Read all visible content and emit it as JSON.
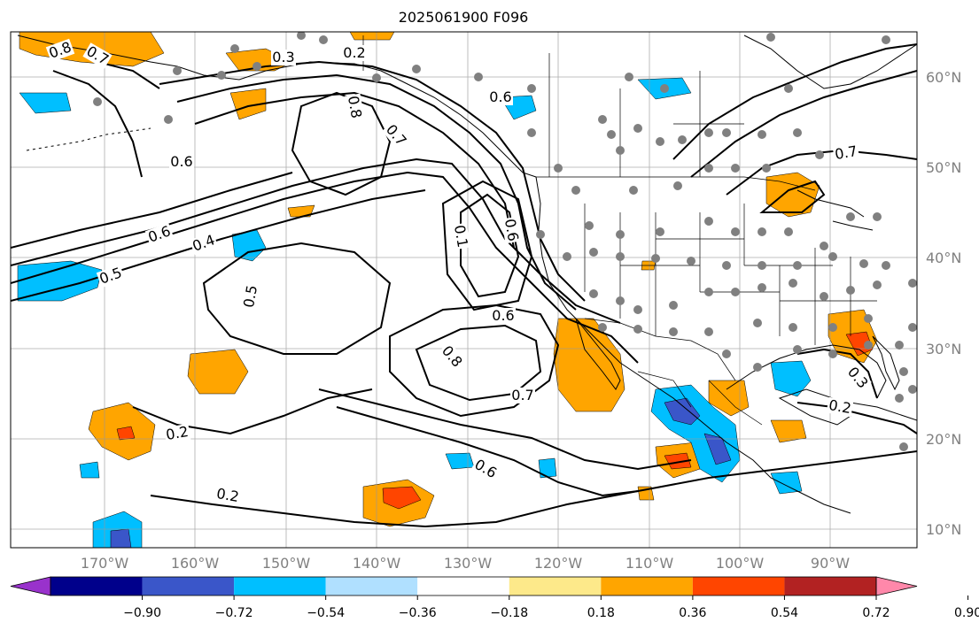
{
  "title": "2025061900 F096",
  "lat_labels": [
    "60°N",
    "50°N",
    "40°N",
    "30°N",
    "20°N",
    "10°N"
  ],
  "lon_labels": [
    "170°W",
    "160°W",
    "150°W",
    "140°W",
    "130°W",
    "120°W",
    "110°W",
    "100°W",
    "90°W"
  ],
  "contour_labels": [
    "0.8",
    "0.7",
    "0.6",
    "0.2",
    "0.8",
    "0.7",
    "0.6",
    "0.6",
    "0.4",
    "0.5",
    "0.5",
    "0.1",
    "0.6",
    "0.6",
    "0.8",
    "0.7",
    "0.6",
    "0.2",
    "0.2",
    "0.7",
    "0.3",
    "0.2",
    "0.3"
  ],
  "colorbar": {
    "ticks": [
      "−0.90",
      "−0.72",
      "−0.54",
      "−0.36",
      "−0.18",
      "0.18",
      "0.36",
      "0.54",
      "0.72",
      "0.90"
    ],
    "colors": [
      "#9932cc",
      "#00008b",
      "#3a56c9",
      "#00bfff",
      "#b0e0ff",
      "#ffffff",
      "#fde98a",
      "#ffa500",
      "#ff4500",
      "#b22222",
      "#ff88aa"
    ]
  },
  "fill_colors": {
    "orange": "#ffa500",
    "red_orange": "#ff4500",
    "cyan": "#00bfff",
    "blue": "#3a56c9",
    "grey_dot": "#808080"
  }
}
